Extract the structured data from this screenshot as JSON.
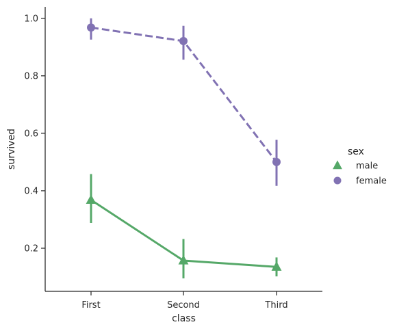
{
  "chart_data": {
    "type": "line",
    "categories": [
      "First",
      "Second",
      "Third"
    ],
    "xlabel": "class",
    "ylabel": "survived",
    "ylim": [
      0.05,
      1.04
    ],
    "yticks": [
      "0.2",
      "0.4",
      "0.6",
      "0.8",
      "1.0"
    ],
    "grid": false,
    "legend": {
      "title": "sex",
      "placement": "right"
    },
    "series": [
      {
        "name": "male",
        "values": [
          0.368,
          0.157,
          0.135
        ],
        "ci_low": [
          0.288,
          0.095,
          0.102
        ],
        "ci_high": [
          0.458,
          0.232,
          0.168
        ],
        "color": "#55a868",
        "marker": "triangle",
        "linestyle": "solid"
      },
      {
        "name": "female",
        "values": [
          0.968,
          0.921,
          0.5
        ],
        "ci_low": [
          0.926,
          0.856,
          0.417
        ],
        "ci_high": [
          1.0,
          0.974,
          0.577
        ],
        "color": "#8172b3",
        "marker": "circle",
        "linestyle": "dashed"
      }
    ]
  }
}
